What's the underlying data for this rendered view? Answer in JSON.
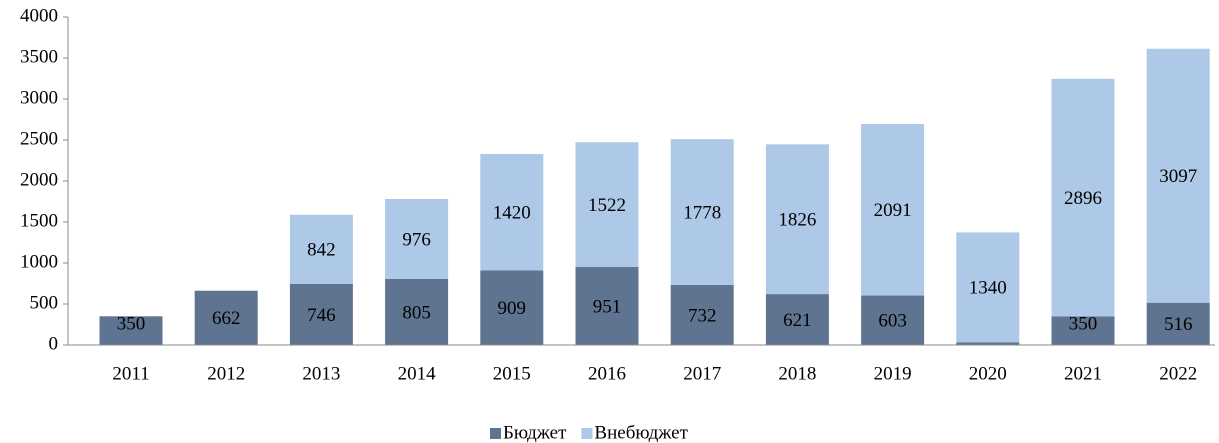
{
  "chart_data": {
    "type": "bar",
    "stacked": true,
    "categories": [
      "2011",
      "2012",
      "2013",
      "2014",
      "2015",
      "2016",
      "2017",
      "2018",
      "2019",
      "2020",
      "2021",
      "2022"
    ],
    "series": [
      {
        "name": "Бюджет",
        "color": "#5f7490",
        "values": [
          350,
          662,
          746,
          805,
          909,
          951,
          732,
          621,
          603,
          33,
          350,
          516
        ]
      },
      {
        "name": "Внебюджет",
        "color": "#aec8e8",
        "values": [
          null,
          null,
          842,
          976,
          1420,
          1522,
          1778,
          1826,
          2091,
          1340,
          2896,
          3097
        ]
      }
    ],
    "ylim": [
      0,
      4000
    ],
    "yticks": [
      0,
      500,
      1000,
      1500,
      2000,
      2500,
      3000,
      3500,
      4000
    ],
    "legend": "bottom"
  }
}
